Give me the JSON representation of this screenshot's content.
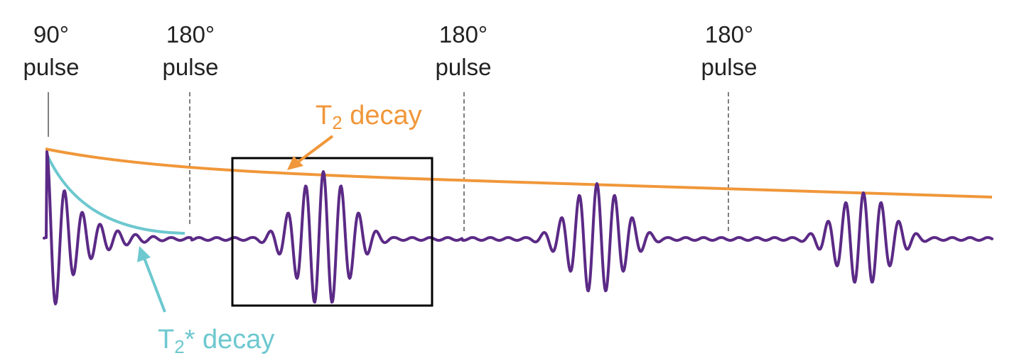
{
  "pulses": [
    {
      "line1": "90°",
      "line2": "pulse"
    },
    {
      "line1": "180°",
      "line2": "pulse"
    },
    {
      "line1": "180°",
      "line2": "pulse"
    },
    {
      "line1": "180°",
      "line2": "pulse"
    }
  ],
  "t2_label": {
    "main": "T",
    "sub": "2",
    "rest": " decay"
  },
  "t2star_label": {
    "main": "T",
    "sub": "2",
    "rest": "* decay"
  },
  "colors": {
    "signal": "#5b2a86",
    "t2_decay": "#f0973a",
    "t2star_decay": "#6dc8cf",
    "pulse_line": "#555555",
    "highlight_box": "#000000"
  }
}
